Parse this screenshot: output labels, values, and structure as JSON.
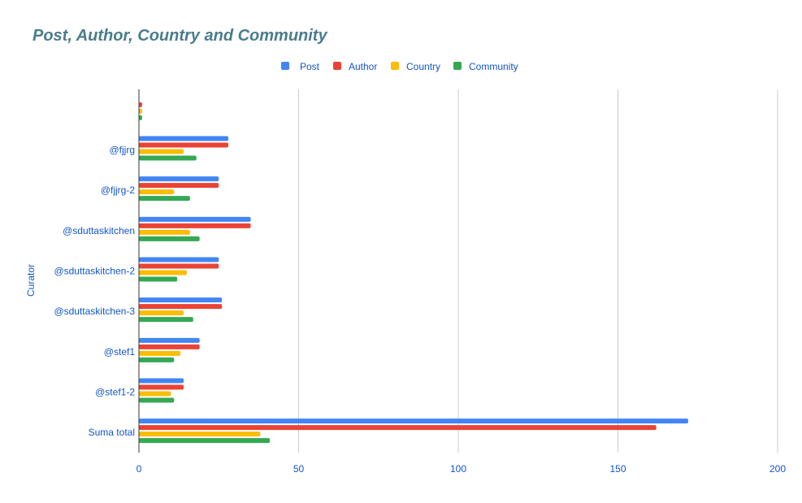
{
  "chart_data": {
    "type": "bar",
    "orientation": "horizontal",
    "title": "Post, Author, Country and Community",
    "ylabel": "Curator",
    "xlabel": "",
    "xlim": [
      0,
      200
    ],
    "xticks": [
      0,
      50,
      100,
      150,
      200
    ],
    "grid": true,
    "legend": "top",
    "categories": [
      "",
      "@fjjrg",
      "@fjjrg-2",
      "@sduttaskitchen",
      "@sduttaskitchen-2",
      "@sduttaskitchen-3",
      "@stef1",
      "@stef1-2",
      "Suma total"
    ],
    "series": [
      {
        "name": "Post",
        "color": "#4285f4",
        "values": [
          0,
          28,
          25,
          35,
          25,
          26,
          19,
          14,
          172
        ]
      },
      {
        "name": "Author",
        "color": "#ea4335",
        "values": [
          1,
          28,
          25,
          35,
          25,
          26,
          19,
          14,
          162
        ]
      },
      {
        "name": "Country",
        "color": "#fbbc04",
        "values": [
          1,
          14,
          11,
          16,
          15,
          14,
          13,
          10,
          38
        ]
      },
      {
        "name": "Community",
        "color": "#34a853",
        "values": [
          1,
          18,
          16,
          19,
          12,
          17,
          11,
          11,
          41
        ]
      }
    ],
    "colors": {
      "title": "#4a7c8c",
      "labels": "#1155cc",
      "grid": "#cccccc",
      "axis": "#333333"
    }
  }
}
